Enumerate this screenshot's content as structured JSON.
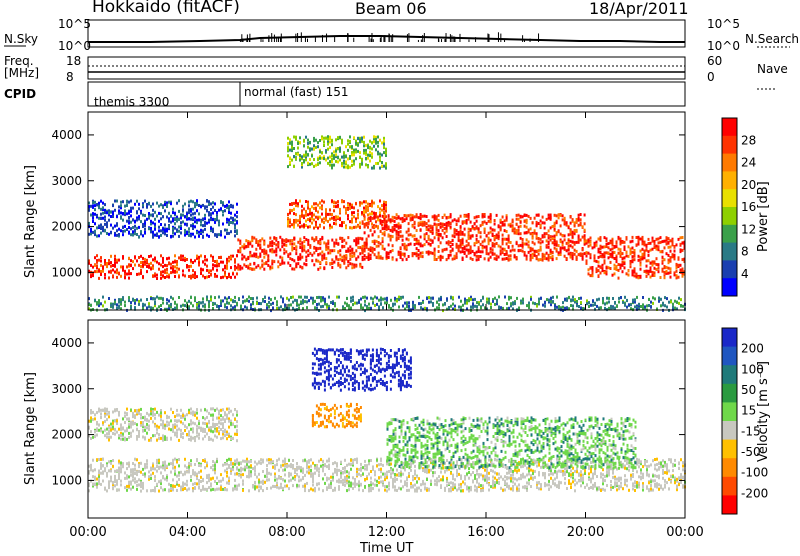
{
  "header": {
    "radar_title": "Hokkaido (fitACF)",
    "beam_title": "Beam 06",
    "date_title": "18/Apr/2011"
  },
  "top_panels": {
    "nsky_label": "N.Sky",
    "nsky_ticks": [
      "10^5",
      "10^0"
    ],
    "nsearch_label": "N.Search",
    "nsearch_ticks": [
      "10^5",
      "10^0"
    ],
    "freq_label": "Freq.",
    "freq_unit": "[MHz]",
    "freq_ticks": [
      "18",
      "8"
    ],
    "nave_label": "Nave",
    "nave_ticks": [
      "60",
      "0"
    ],
    "cpid_label": "CPID",
    "cpid_segments": [
      {
        "name": "themis 3300",
        "start_hour": 0,
        "end_hour": 6
      },
      {
        "name": "normal (fast) 151",
        "start_hour": 6,
        "end_hour": 24
      }
    ]
  },
  "axes": {
    "ylabel": "Slant Range [km]",
    "xlabel": "Time UT",
    "x_tick_labels": [
      "00:00",
      "04:00",
      "08:00",
      "12:00",
      "16:00",
      "20:00",
      "00:00"
    ],
    "y_tick_labels": [
      "1000",
      "2000",
      "3000",
      "4000"
    ]
  },
  "colorbars": {
    "power": {
      "label": "Power [dB]",
      "ticks": [
        "28",
        "24",
        "20",
        "16",
        "12",
        "8",
        "4"
      ],
      "colors": [
        "#ff0000",
        "#ff3300",
        "#ff7a00",
        "#ffb000",
        "#e8e000",
        "#8ed000",
        "#3aa04a",
        "#2a7a86",
        "#1a3fb0",
        "#0000ff"
      ]
    },
    "velocity": {
      "label": "Velocity [m s⁻¹]",
      "ticks": [
        "200",
        "100",
        "50",
        "15",
        "-15",
        "-50",
        "-100",
        "-200"
      ],
      "colors": [
        "#1a28c8",
        "#1f56c0",
        "#1f7a7a",
        "#2a9a40",
        "#6fd84a",
        "#c8c8c0",
        "#ffc000",
        "#ff8a00",
        "#ff4a00",
        "#ff0000"
      ]
    }
  },
  "chart_data": [
    {
      "type": "heatmap",
      "title": "Power",
      "xlabel": "Time UT",
      "ylabel": "Slant Range [km]",
      "xlim": [
        0,
        24
      ],
      "ylim": [
        180,
        4500
      ],
      "colorbar": "Power [dB]",
      "regions": [
        {
          "t0": 0,
          "t1": 6,
          "r0": 900,
          "r1": 1400,
          "level_db": 28
        },
        {
          "t0": 0,
          "t1": 6,
          "r0": 1800,
          "r1": 2600,
          "level_db": 6
        },
        {
          "t0": 6,
          "t1": 11,
          "r0": 1100,
          "r1": 1800,
          "level_db": 28
        },
        {
          "t0": 8,
          "t1": 12,
          "r0": 2000,
          "r1": 2600,
          "level_db": 26
        },
        {
          "t0": 11,
          "t1": 20,
          "r0": 1300,
          "r1": 2300,
          "level_db": 28
        },
        {
          "t0": 20,
          "t1": 24,
          "r0": 900,
          "r1": 1800,
          "level_db": 28
        },
        {
          "t0": 8,
          "t1": 12,
          "r0": 3300,
          "r1": 4000,
          "level_db": 14
        },
        {
          "t0": 0,
          "t1": 24,
          "r0": 200,
          "r1": 500,
          "level_db": 10
        }
      ]
    },
    {
      "type": "heatmap",
      "title": "Velocity",
      "xlabel": "Time UT",
      "ylabel": "Slant Range [km]",
      "xlim": [
        0,
        24
      ],
      "ylim": [
        180,
        4500
      ],
      "colorbar": "Velocity [m s⁻¹]",
      "regions": [
        {
          "t0": 0,
          "t1": 24,
          "r0": 800,
          "r1": 1500,
          "velocity_ms": 0
        },
        {
          "t0": 0,
          "t1": 6,
          "r0": 1900,
          "r1": 2600,
          "velocity_ms": 0
        },
        {
          "t0": 9,
          "t1": 13,
          "r0": 3000,
          "r1": 3900,
          "velocity_ms": 180
        },
        {
          "t0": 12,
          "t1": 22,
          "r0": 1300,
          "r1": 2400,
          "velocity_ms": 30
        },
        {
          "t0": 9,
          "t1": 11,
          "r0": 2200,
          "r1": 2700,
          "velocity_ms": -60
        }
      ]
    }
  ]
}
